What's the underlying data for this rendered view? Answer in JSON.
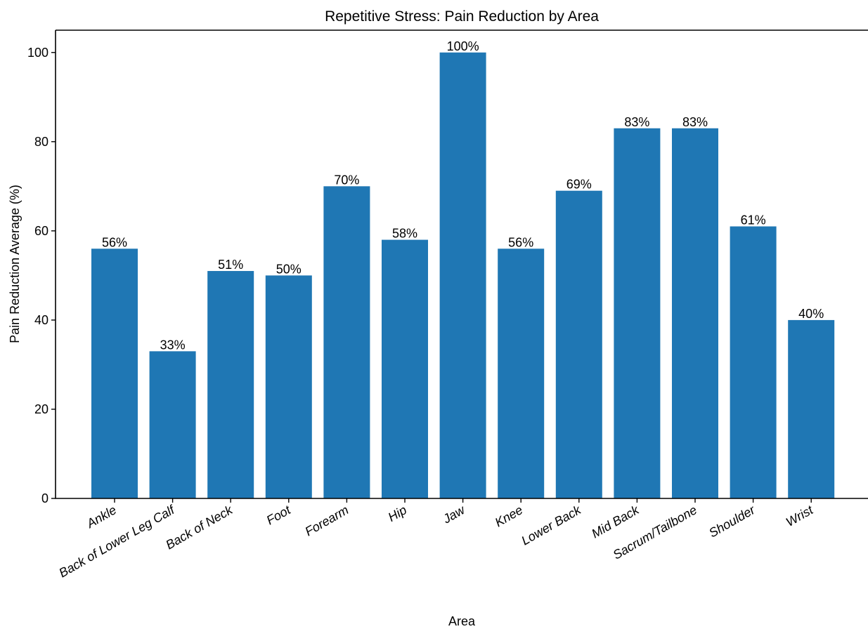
{
  "chart_data": {
    "type": "bar",
    "title": "Repetitive Stress: Pain Reduction by Area",
    "xlabel": "Area",
    "ylabel": "Pain Reduction Average (%)",
    "categories": [
      "Ankle",
      "Back of Lower Leg Calf",
      "Back of Neck",
      "Foot",
      "Forearm",
      "Hip",
      "Jaw",
      "Knee",
      "Lower Back",
      "Mid Back",
      "Sacrum/Tailbone",
      "Shoulder",
      "Wrist"
    ],
    "values": [
      56,
      33,
      51,
      50,
      70,
      58,
      100,
      56,
      69,
      83,
      83,
      61,
      40
    ],
    "data_labels": [
      "56%",
      "33%",
      "51%",
      "50%",
      "70%",
      "58%",
      "100%",
      "56%",
      "69%",
      "83%",
      "83%",
      "61%",
      "40%"
    ],
    "ylim": [
      0,
      105
    ],
    "yticks": [
      0,
      20,
      40,
      60,
      80,
      100
    ],
    "bar_color": "#1f77b4",
    "grid": false,
    "legend": "none"
  }
}
